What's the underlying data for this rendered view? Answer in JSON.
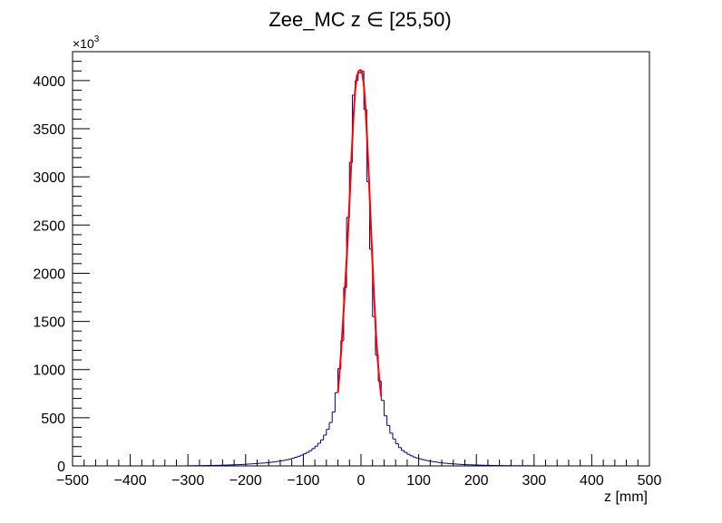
{
  "chart_data": {
    "type": "histogram",
    "title": "Zee_MC z ∈ [25,50)",
    "xlabel": "z [mm]",
    "ylabel": "",
    "y_multiplier_label": "×10",
    "y_multiplier_exponent": "3",
    "xlim": [
      -500,
      500
    ],
    "ylim": [
      0,
      4300
    ],
    "grid": false,
    "legend": "none",
    "x_ticks": [
      -500,
      -400,
      -300,
      -200,
      -100,
      0,
      100,
      200,
      300,
      400,
      500
    ],
    "x_tick_labels": [
      "−500",
      "−400",
      "−300",
      "−200",
      "−100",
      "0",
      "100",
      "200",
      "300",
      "400",
      "500"
    ],
    "y_ticks": [
      0,
      500,
      1000,
      1500,
      2000,
      2500,
      3000,
      3500,
      4000
    ],
    "y_tick_labels": [
      "0",
      "500",
      "1000",
      "1500",
      "2000",
      "2500",
      "3000",
      "3500",
      "4000"
    ],
    "bin_width": 5,
    "series": [
      {
        "color": "#000080",
        "kind": "step",
        "x": [
          -300,
          -295,
          -290,
          -285,
          -280,
          -275,
          -270,
          -265,
          -260,
          -255,
          -250,
          -245,
          -240,
          -235,
          -230,
          -225,
          -220,
          -215,
          -210,
          -205,
          -200,
          -195,
          -190,
          -185,
          -180,
          -175,
          -170,
          -165,
          -160,
          -155,
          -150,
          -145,
          -140,
          -135,
          -130,
          -125,
          -120,
          -115,
          -110,
          -105,
          -100,
          -95,
          -90,
          -85,
          -80,
          -75,
          -70,
          -65,
          -60,
          -55,
          -50,
          -45,
          -40,
          -35,
          -30,
          -25,
          -20,
          -15,
          -10,
          -5,
          0,
          5,
          10,
          15,
          20,
          25,
          30,
          35,
          40,
          45,
          50,
          55,
          60,
          65,
          70,
          75,
          80,
          85,
          90,
          95,
          100,
          105,
          110,
          115,
          120,
          125,
          130,
          135,
          140,
          145,
          150,
          155,
          160,
          165,
          170,
          175,
          180,
          185,
          190,
          195,
          200,
          205,
          210,
          215,
          220,
          225,
          230,
          235,
          240,
          245,
          250,
          255,
          260,
          265,
          270,
          275,
          280,
          285,
          290,
          295
        ],
        "values": [
          2,
          2,
          3,
          3,
          3,
          4,
          4,
          5,
          5,
          6,
          6,
          7,
          8,
          9,
          10,
          11,
          12,
          13,
          14,
          16,
          18,
          20,
          22,
          24,
          26,
          28,
          30,
          33,
          36,
          40,
          44,
          48,
          53,
          58,
          64,
          71,
          80,
          90,
          100,
          112,
          125,
          140,
          158,
          180,
          205,
          235,
          270,
          320,
          380,
          450,
          560,
          760,
          1010,
          1300,
          1850,
          2580,
          3150,
          3850,
          4000,
          4080,
          4100,
          3700,
          2950,
          2250,
          1550,
          1150,
          880,
          680,
          520,
          420,
          340,
          280,
          230,
          190,
          160,
          140,
          120,
          105,
          92,
          82,
          73,
          65,
          58,
          52,
          47,
          42,
          38,
          34,
          30,
          27,
          24,
          22,
          20,
          18,
          16,
          14,
          13,
          12,
          11,
          10,
          9,
          8,
          7,
          6,
          6,
          5,
          5,
          4,
          4,
          3,
          3,
          3,
          2,
          2,
          2,
          2,
          2,
          2,
          2,
          1
        ]
      },
      {
        "color": "#ff0000",
        "kind": "fit",
        "x": [
          -40,
          -37,
          -34,
          -31,
          -28,
          -25,
          -22,
          -19,
          -16,
          -13,
          -10,
          -7,
          -4,
          -1,
          0,
          2,
          5,
          8,
          11,
          14,
          17,
          20,
          23,
          26,
          29,
          32,
          35
        ],
        "values": [
          760,
          980,
          1230,
          1520,
          1820,
          2130,
          2480,
          2860,
          3250,
          3620,
          3900,
          4050,
          4100,
          4110,
          4100,
          4080,
          3950,
          3700,
          3350,
          2950,
          2520,
          2100,
          1720,
          1380,
          1100,
          880,
          720
        ]
      }
    ]
  }
}
